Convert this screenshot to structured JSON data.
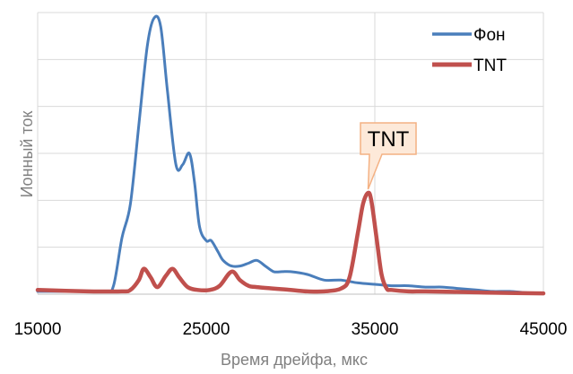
{
  "chart_data": {
    "type": "line",
    "xlabel": "Время дрейфа, мкс",
    "ylabel": "Ионный ток",
    "xlim": [
      15000,
      45000
    ],
    "ylim": [
      0,
      100
    ],
    "x_ticks": [
      "15000",
      "25000",
      "35000",
      "45000"
    ],
    "y_gridlines": 6,
    "grid": true,
    "legend": "top-right",
    "series": [
      {
        "name": "Фон",
        "color": "#4a7ebb",
        "x": [
          15000,
          17000,
          19000,
          19500,
          20000,
          20500,
          21000,
          21500,
          21900,
          22300,
          22700,
          23200,
          23600,
          24000,
          24300,
          24600,
          25000,
          25300,
          25700,
          26000,
          26500,
          27000,
          27500,
          28000,
          28500,
          29000,
          29500,
          30000,
          31000,
          32000,
          33000,
          34000,
          35000,
          36000,
          37000,
          38000,
          39000,
          40000,
          41000,
          42000,
          43000,
          44000,
          45000
        ],
        "y": [
          1,
          1,
          1,
          3,
          20,
          32,
          60,
          88,
          98,
          95,
          72,
          46,
          46,
          50,
          40,
          24,
          19,
          19,
          15,
          12,
          10,
          10,
          11,
          12,
          10,
          8,
          8,
          8,
          7,
          5,
          5,
          4,
          3.5,
          3,
          3,
          2.5,
          2.5,
          2,
          1.5,
          1,
          1,
          0.5,
          0.3
        ]
      },
      {
        "name": "TNT",
        "color": "#c0504d",
        "x": [
          15000,
          18000,
          20000,
          20500,
          21000,
          21300,
          21700,
          22100,
          22600,
          23000,
          23400,
          23900,
          24500,
          25200,
          25800,
          26500,
          27000,
          27500,
          28000,
          30000,
          31000,
          32000,
          33000,
          33500,
          34000,
          34300,
          34600,
          34800,
          35100,
          35400,
          35700,
          36000,
          37000,
          38000,
          40000,
          42000,
          45000
        ],
        "y": [
          1.5,
          1,
          1,
          1.5,
          5,
          9,
          6,
          2.5,
          6.5,
          9,
          6,
          2.5,
          1.5,
          1.5,
          3,
          8,
          5,
          3,
          2.5,
          1.5,
          1,
          1,
          2,
          6,
          22,
          32,
          36,
          33,
          20,
          7,
          2,
          1.5,
          1,
          1,
          0.8,
          0.5,
          0.3
        ]
      }
    ],
    "annotation": {
      "text": "TNT",
      "target_x": 34600,
      "target_y": 36
    }
  }
}
